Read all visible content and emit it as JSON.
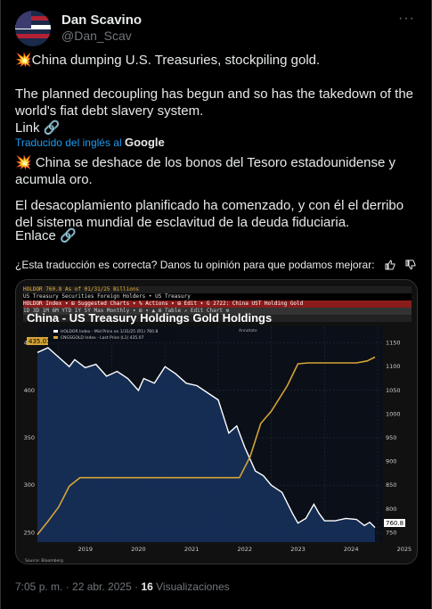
{
  "author": {
    "name": "Dan Scavino",
    "handle": "@Dan_Scav",
    "more_icon": "ellipsis-icon"
  },
  "tweet": {
    "line1": "💥China dumping U.S. Treasuries, stockpiling gold.",
    "line2": "The planned decoupling has begun and so has the takedown of the world's fiat debt slavery system.",
    "link_text": "Link 🔗",
    "translated_by_prefix": "Traducido del inglés al",
    "translated_by_brand": "Google",
    "translation_line1": "💥 China se deshace de los bonos del Tesoro estadounidense y acumula oro.",
    "translation_line2": "El desacoplamiento planificado ha comenzado, y con él el derribo del sistema mundial de esclavitud de la deuda fiduciaria.",
    "translation_link": "Enlace 🔗",
    "feedback_prompt": "¿Esta traducción es correcta? Danos tu opinión para que podamos mejorar:"
  },
  "bloomberg": {
    "row1": "HOLDOR    760.8          As of 01/31/25  Billions",
    "row2": "US Treasury Securities Foreign Holders  •  US Treasury",
    "row3": "HOLDOR Index   ▾  ⊞ Suggested Charts ▾   % Actions ▾   ⊞ Edit ▾                G 2722: China UST Holding Gold",
    "row4": "1D 3D 1M 6M YTD 1Y 5Y Max  Monthly ▾  ⊞  ▾  ▲  ⊞  Table                                    ↗ Edit Chart  ⚙",
    "legend1": "HOLDOR Index - Mid Price on 1/31/25 (R1)  760.8",
    "legend2": "CNGSGOLD Index - Last Price (L1)  435.07",
    "annot": "Annotate",
    "source": "Source: Bloomberg"
  },
  "chart_data": {
    "type": "line",
    "title": "China - US Treasury Holdings Gold Holdings",
    "x_ticks": [
      "2019",
      "2020",
      "2021",
      "2022",
      "2023",
      "2024",
      "2025"
    ],
    "left_axis": {
      "ticks": [
        250,
        300,
        350,
        400,
        450
      ],
      "range": [
        240,
        460
      ]
    },
    "right_axis": {
      "ticks": [
        750,
        800,
        850,
        900,
        950,
        1000,
        1050,
        1100,
        1150
      ],
      "range": [
        730,
        1170
      ]
    },
    "last_label_left": "435.07",
    "last_label_right": "760.8",
    "series": [
      {
        "name": "HOLDOR Index",
        "axis": "right",
        "color": "#ffffff",
        "fill": "#16305a",
        "points": [
          [
            2018.6,
            1130
          ],
          [
            2018.8,
            1140
          ],
          [
            2019.0,
            1120
          ],
          [
            2019.2,
            1100
          ],
          [
            2019.3,
            1115
          ],
          [
            2019.5,
            1098
          ],
          [
            2019.7,
            1105
          ],
          [
            2019.9,
            1080
          ],
          [
            2020.1,
            1090
          ],
          [
            2020.3,
            1075
          ],
          [
            2020.5,
            1050
          ],
          [
            2020.6,
            1075
          ],
          [
            2020.8,
            1065
          ],
          [
            2021.0,
            1100
          ],
          [
            2021.2,
            1085
          ],
          [
            2021.4,
            1065
          ],
          [
            2021.6,
            1060
          ],
          [
            2021.8,
            1045
          ],
          [
            2022.0,
            1030
          ],
          [
            2022.2,
            960
          ],
          [
            2022.35,
            975
          ],
          [
            2022.5,
            930
          ],
          [
            2022.7,
            880
          ],
          [
            2022.85,
            870
          ],
          [
            2023.0,
            850
          ],
          [
            2023.2,
            835
          ],
          [
            2023.4,
            790
          ],
          [
            2023.5,
            770
          ],
          [
            2023.65,
            780
          ],
          [
            2023.8,
            810
          ],
          [
            2023.9,
            790
          ],
          [
            2024.0,
            775
          ],
          [
            2024.2,
            775
          ],
          [
            2024.4,
            780
          ],
          [
            2024.6,
            778
          ],
          [
            2024.75,
            765
          ],
          [
            2024.85,
            772
          ],
          [
            2024.95,
            760.8
          ]
        ]
      },
      {
        "name": "CNGSGOLD Index",
        "axis": "left",
        "color": "#d4a437",
        "points": [
          [
            2018.6,
            248
          ],
          [
            2018.8,
            262
          ],
          [
            2019.0,
            277
          ],
          [
            2019.2,
            299
          ],
          [
            2019.4,
            308
          ],
          [
            2019.6,
            308
          ],
          [
            2020.0,
            308
          ],
          [
            2020.5,
            308
          ],
          [
            2021.0,
            308
          ],
          [
            2021.5,
            308
          ],
          [
            2021.9,
            308
          ],
          [
            2022.2,
            308
          ],
          [
            2022.4,
            308
          ],
          [
            2022.6,
            330
          ],
          [
            2022.8,
            365
          ],
          [
            2023.0,
            378
          ],
          [
            2023.3,
            405
          ],
          [
            2023.5,
            428
          ],
          [
            2023.7,
            429
          ],
          [
            2024.0,
            429
          ],
          [
            2024.3,
            429
          ],
          [
            2024.5,
            429
          ],
          [
            2024.6,
            429
          ],
          [
            2024.8,
            431
          ],
          [
            2024.95,
            435.07
          ]
        ]
      }
    ]
  },
  "footer": {
    "time": "7:05 p. m. · 22 abr. 2025 ·",
    "views_count": "16",
    "views_label": "Visualizaciones"
  },
  "colors": {
    "accent": "#1d9bf0",
    "background": "#000000",
    "muted": "#71767b"
  }
}
